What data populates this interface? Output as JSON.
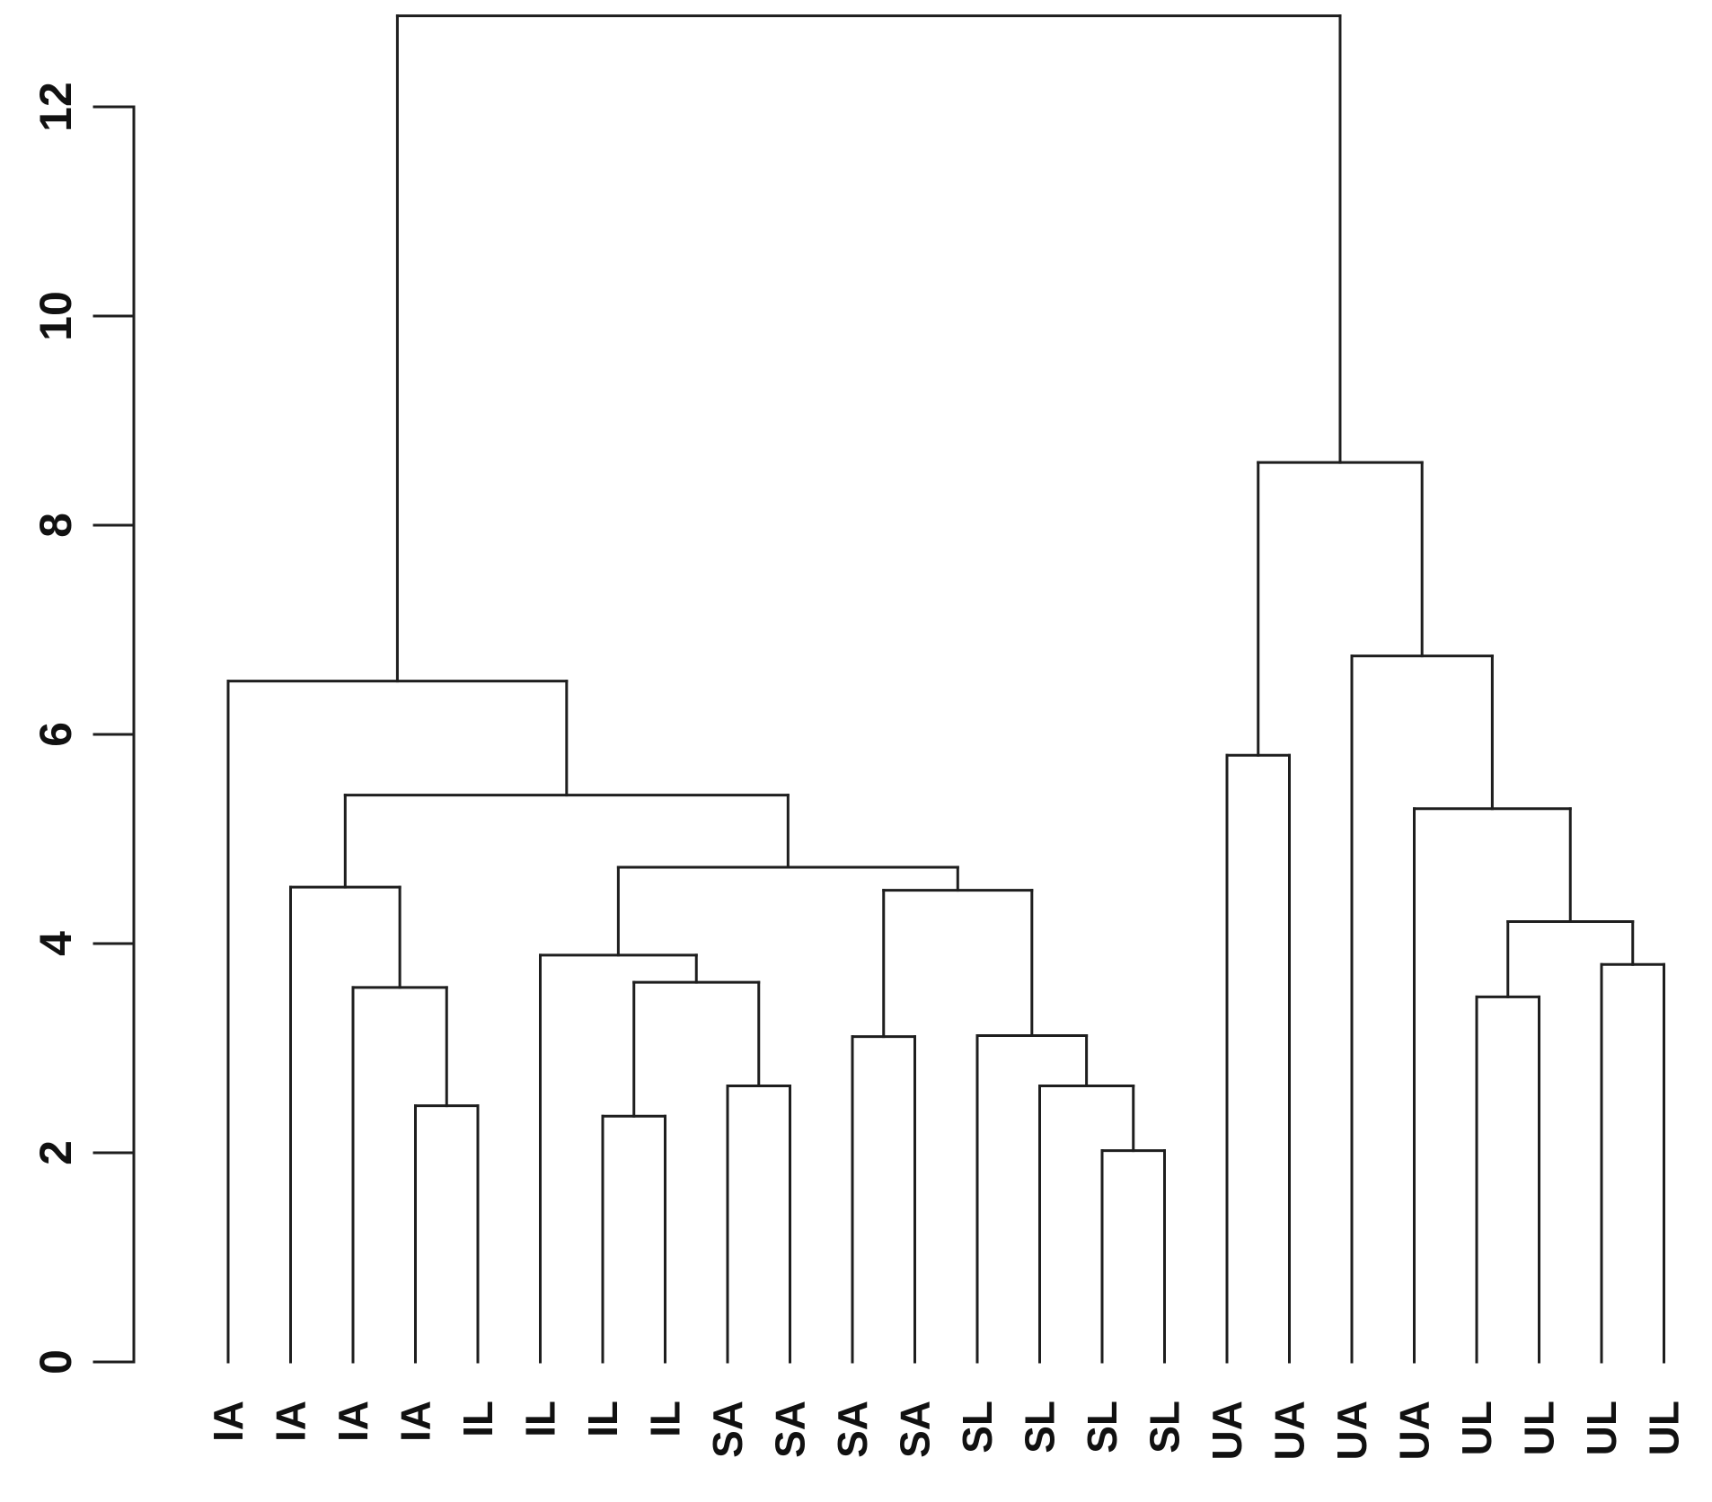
{
  "figure": {
    "background_color": "#ffffff",
    "line_color": "#1e1e1e",
    "text_color": "#111111",
    "title": ""
  },
  "chart_data": {
    "type": "dendrogram",
    "title": "",
    "xlabel": "",
    "ylabel": "",
    "orientation": "leaves-at-bottom",
    "grid": false,
    "legend": false,
    "y_axis": {
      "ticks": [
        0,
        2,
        4,
        6,
        8,
        10,
        12
      ],
      "range": [
        0,
        12.9
      ],
      "tick_label_rotation_deg": 90
    },
    "leaf_labels": [
      "IA",
      "IA",
      "IA",
      "IA",
      "IL",
      "IL",
      "IL",
      "IL",
      "SA",
      "SA",
      "SA",
      "SA",
      "SL",
      "SL",
      "SL",
      "SL",
      "UA",
      "UA",
      "UA",
      "UA",
      "UL",
      "UL",
      "UL",
      "UL"
    ],
    "leaf_label_rotation_deg": 90,
    "root_height": 12.87,
    "tree": {
      "h": 12.87,
      "c": [
        {
          "h": 6.51,
          "c": [
            "IA",
            {
              "h": 5.42,
              "c": [
                {
                  "h": 4.54,
                  "c": [
                    "IA",
                    {
                      "h": 3.58,
                      "c": [
                        "IA",
                        {
                          "h": 2.45,
                          "c": [
                            "IA",
                            "IL"
                          ]
                        }
                      ]
                    }
                  ]
                },
                {
                  "h": 4.73,
                  "c": [
                    {
                      "h": 3.89,
                      "c": [
                        "IL",
                        {
                          "h": 3.63,
                          "c": [
                            {
                              "h": 2.35,
                              "c": [
                                "IL",
                                "IL"
                              ]
                            },
                            {
                              "h": 2.64,
                              "c": [
                                "SA",
                                "SA"
                              ]
                            }
                          ]
                        }
                      ]
                    },
                    {
                      "h": 4.51,
                      "c": [
                        {
                          "h": 3.11,
                          "c": [
                            "SA",
                            "SA"
                          ]
                        },
                        {
                          "h": 3.12,
                          "c": [
                            "SL",
                            {
                              "h": 2.64,
                              "c": [
                                "SL",
                                {
                                  "h": 2.02,
                                  "c": [
                                    "SL",
                                    "SL"
                                  ]
                                }
                              ]
                            }
                          ]
                        }
                      ]
                    }
                  ]
                }
              ]
            }
          ]
        },
        {
          "h": 8.6,
          "c": [
            {
              "h": 5.8,
              "c": [
                "UA",
                "UA"
              ]
            },
            {
              "h": 6.75,
              "c": [
                "UA",
                {
                  "h": 5.29,
                  "c": [
                    "UA",
                    {
                      "h": 4.21,
                      "c": [
                        {
                          "h": 3.49,
                          "c": [
                            "UL",
                            "UL"
                          ]
                        },
                        {
                          "h": 3.8,
                          "c": [
                            "UL",
                            "UL"
                          ]
                        }
                      ]
                    }
                  ]
                }
              ]
            }
          ]
        }
      ]
    }
  }
}
